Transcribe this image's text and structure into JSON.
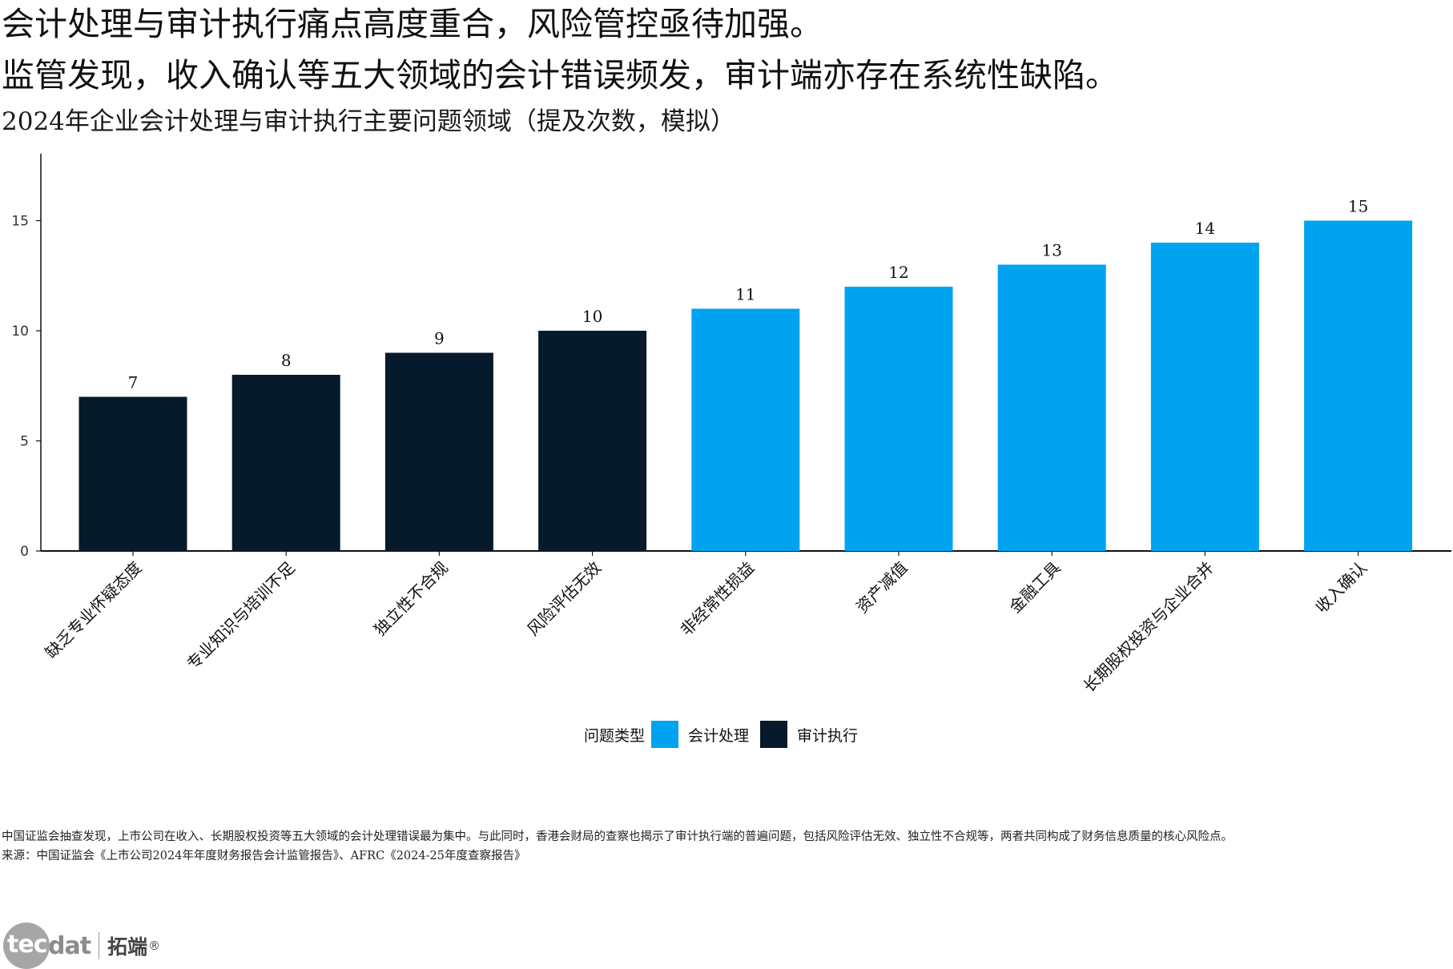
{
  "header": {
    "title_line1": "会计处理与审计执行痛点高度重合，风险管控亟待加强。",
    "title_line2": "监管发现，收入确认等五大领域的会计错误频发，审计端亦存在系统性缺陷。",
    "subtitle": "2024年企业会计处理与审计执行主要问题领域（提及次数，模拟）"
  },
  "chart_data": {
    "type": "bar",
    "categories": [
      "缺乏专业怀疑态度",
      "专业知识与培训不足",
      "独立性不合规",
      "风险评估无效",
      "非经常性损益",
      "资产减值",
      "金融工具",
      "长期股权投资与企业合并",
      "收入确认"
    ],
    "values": [
      7,
      8,
      9,
      10,
      11,
      12,
      13,
      14,
      15
    ],
    "groups": [
      "审计执行",
      "审计执行",
      "审计执行",
      "审计执行",
      "会计处理",
      "会计处理",
      "会计处理",
      "会计处理",
      "会计处理"
    ],
    "value_labels": [
      "7",
      "8",
      "9",
      "10",
      "11",
      "12",
      "13",
      "14",
      "15"
    ],
    "yticks": [
      0,
      5,
      10,
      15
    ],
    "ytick_labels": [
      "0",
      "5",
      "10",
      "15"
    ],
    "ylim": [
      0,
      18
    ],
    "xlabel": "",
    "ylabel": "",
    "grid": false,
    "legend": {
      "title": "问题类型",
      "placement": "bottom-center",
      "items": [
        {
          "name": "会计处理",
          "color": "#00a3ef"
        },
        {
          "name": "审计执行",
          "color": "#071a2b"
        }
      ]
    }
  },
  "footer": {
    "note": "中国证监会抽查发现，上市公司在收入、长期股权投资等五大领域的会计处理错误最为集中。与此同时，香港会财局的查察也揭示了审计执行端的普遍问题，包括风险评估无效、独立性不合规等，两者共同构成了财务信息质量的核心风险点。",
    "source": "来源：中国证监会《上市公司2024年年度财务报告会计监管报告》、AFRC《2024-25年度查察报告》"
  },
  "logo": {
    "tec": "tec",
    "dat": "dat",
    "cn": "拓端",
    "reg": "®"
  }
}
